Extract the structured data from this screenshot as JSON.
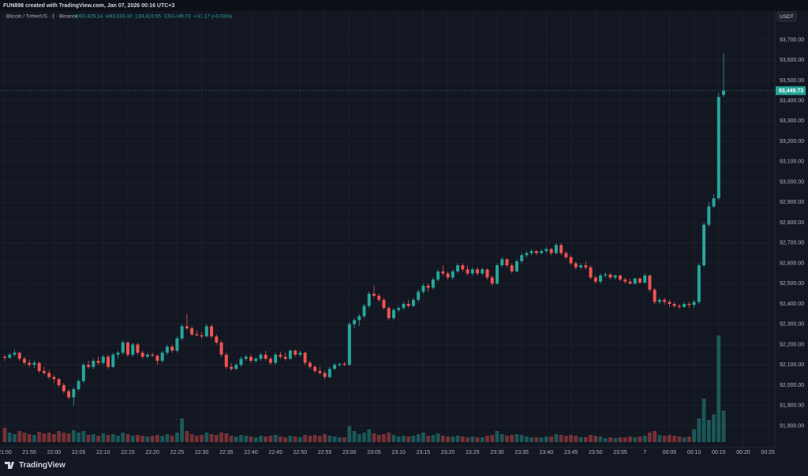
{
  "chart_data": {
    "type": "candlestick",
    "title": "FUN898 created with TradingView.com, Jan 07, 2026 00:16 UTC+3",
    "symbol": "Bitcoin / TetherUS · 1 · Binance",
    "header_values": [
      "O93,429.14",
      "H93,633.40",
      "L93,418.55",
      "C93,449.73",
      "+31.17 (+0.03%)"
    ],
    "currency": "USDT",
    "brand": "TradingView",
    "up_color": "#26a69a",
    "down_color": "#ef5350",
    "last_price": {
      "value": 93449.73,
      "label": "93,449.73"
    },
    "ylim": [
      91720,
      93830
    ],
    "yticks": [
      {
        "value": 91800,
        "label": "91,800.00"
      },
      {
        "value": 91900,
        "label": "91,900.00"
      },
      {
        "value": 92000,
        "label": "92,000.00"
      },
      {
        "value": 92100,
        "label": "92,100.00"
      },
      {
        "value": 92200,
        "label": "92,200.00"
      },
      {
        "value": 92300,
        "label": "92,300.00"
      },
      {
        "value": 92400,
        "label": "92,400.00"
      },
      {
        "value": 92500,
        "label": "92,500.00"
      },
      {
        "value": 92600,
        "label": "92,600.00"
      },
      {
        "value": 92700,
        "label": "92,700.00"
      },
      {
        "value": 92800,
        "label": "92,800.00"
      },
      {
        "value": 92900,
        "label": "92,900.00"
      },
      {
        "value": 93000,
        "label": "93,000.00"
      },
      {
        "value": 93100,
        "label": "93,100.00"
      },
      {
        "value": 93200,
        "label": "93,200.00"
      },
      {
        "value": 93300,
        "label": "93,300.00"
      },
      {
        "value": 93400,
        "label": "93,400.00"
      },
      {
        "value": 93500,
        "label": "93,500.00"
      },
      {
        "value": 93600,
        "label": "93,600.00"
      },
      {
        "value": 93700,
        "label": "93,700.00"
      }
    ],
    "time_labels": [
      "21:50",
      "21:55",
      "22:00",
      "22:05",
      "22:10",
      "22:15",
      "22:20",
      "22:25",
      "22:30",
      "22:35",
      "22:40",
      "22:45",
      "22:50",
      "22:55",
      "23:00",
      "23:05",
      "23:10",
      "23:15",
      "23:20",
      "23:25",
      "23:30",
      "23:35",
      "23:40",
      "23:45",
      "23:50",
      "23:55",
      "7",
      "00:05",
      "00:10",
      "00:15",
      "00:20",
      "00:25"
    ],
    "grid": true,
    "candles": [
      [
        92140,
        92150,
        92120,
        92135,
        18
      ],
      [
        92135,
        92160,
        92130,
        92150,
        12
      ],
      [
        92150,
        92175,
        92140,
        92160,
        10
      ],
      [
        92160,
        92165,
        92120,
        92130,
        14
      ],
      [
        92130,
        92140,
        92100,
        92110,
        12
      ],
      [
        92110,
        92125,
        92090,
        92100,
        10
      ],
      [
        92100,
        92120,
        92085,
        92110,
        9
      ],
      [
        92110,
        92115,
        92060,
        92070,
        13
      ],
      [
        92070,
        92090,
        92050,
        92060,
        11
      ],
      [
        92060,
        92075,
        92030,
        92040,
        12
      ],
      [
        92040,
        92050,
        92010,
        92030,
        10
      ],
      [
        92030,
        92035,
        91990,
        92000,
        14
      ],
      [
        92000,
        92010,
        91960,
        91970,
        12
      ],
      [
        91970,
        91980,
        91930,
        91940,
        11
      ],
      [
        91940,
        91990,
        91900,
        91980,
        15
      ],
      [
        91980,
        92030,
        91970,
        92020,
        12
      ],
      [
        92020,
        92110,
        92010,
        92100,
        14
      ],
      [
        92100,
        92120,
        92080,
        92090,
        9
      ],
      [
        92090,
        92130,
        92080,
        92120,
        10
      ],
      [
        92120,
        92140,
        92100,
        92110,
        8
      ],
      [
        92110,
        92150,
        92100,
        92140,
        11
      ],
      [
        92140,
        92150,
        92080,
        92090,
        9
      ],
      [
        92090,
        92160,
        92085,
        92150,
        10
      ],
      [
        92150,
        92170,
        92130,
        92160,
        8
      ],
      [
        92160,
        92220,
        92150,
        92210,
        12
      ],
      [
        92210,
        92215,
        92140,
        92150,
        10
      ],
      [
        92150,
        92210,
        92140,
        92200,
        8
      ],
      [
        92200,
        92210,
        92150,
        92160,
        9
      ],
      [
        92160,
        92170,
        92130,
        92140,
        8
      ],
      [
        92140,
        92160,
        92130,
        92150,
        7
      ],
      [
        92150,
        92160,
        92140,
        92145,
        8
      ],
      [
        92145,
        92150,
        92100,
        92120,
        9
      ],
      [
        92120,
        92170,
        92110,
        92160,
        8
      ],
      [
        92160,
        92200,
        92150,
        92190,
        10
      ],
      [
        92190,
        92200,
        92160,
        92170,
        8
      ],
      [
        92170,
        92240,
        92160,
        92230,
        12
      ],
      [
        92230,
        92300,
        92220,
        92290,
        30
      ],
      [
        92290,
        92350,
        92270,
        92280,
        14
      ],
      [
        92280,
        92290,
        92240,
        92250,
        10
      ],
      [
        92250,
        92270,
        92240,
        92245,
        8
      ],
      [
        92245,
        92260,
        92230,
        92240,
        9
      ],
      [
        92240,
        92300,
        92235,
        92290,
        12
      ],
      [
        92290,
        92300,
        92230,
        92240,
        10
      ],
      [
        92240,
        92250,
        92200,
        92210,
        9
      ],
      [
        92210,
        92220,
        92140,
        92150,
        12
      ],
      [
        92150,
        92160,
        92080,
        92090,
        11
      ],
      [
        92090,
        92110,
        92070,
        92080,
        8
      ],
      [
        92080,
        92110,
        92075,
        92100,
        7
      ],
      [
        92100,
        92140,
        92090,
        92130,
        9
      ],
      [
        92130,
        92150,
        92120,
        92140,
        8
      ],
      [
        92140,
        92150,
        92110,
        92120,
        7
      ],
      [
        92120,
        92140,
        92110,
        92130,
        6
      ],
      [
        92130,
        92160,
        92120,
        92150,
        8
      ],
      [
        92150,
        92170,
        92120,
        92130,
        7
      ],
      [
        92130,
        92140,
        92100,
        92110,
        8
      ],
      [
        92110,
        92160,
        92100,
        92150,
        9
      ],
      [
        92150,
        92165,
        92130,
        92140,
        7
      ],
      [
        92140,
        92160,
        92120,
        92130,
        6
      ],
      [
        92130,
        92175,
        92125,
        92170,
        8
      ],
      [
        92170,
        92175,
        92140,
        92150,
        7
      ],
      [
        92150,
        92170,
        92140,
        92160,
        6
      ],
      [
        92160,
        92165,
        92100,
        92110,
        9
      ],
      [
        92110,
        92120,
        92080,
        92090,
        8
      ],
      [
        92090,
        92100,
        92060,
        92070,
        9
      ],
      [
        92070,
        92090,
        92050,
        92060,
        8
      ],
      [
        92060,
        92070,
        92030,
        92040,
        10
      ],
      [
        92040,
        92090,
        92035,
        92080,
        8
      ],
      [
        92080,
        92110,
        92075,
        92100,
        7
      ],
      [
        92100,
        92110,
        92090,
        92105,
        6
      ],
      [
        92105,
        92115,
        92095,
        92100,
        6
      ],
      [
        92100,
        92310,
        92095,
        92300,
        20
      ],
      [
        92300,
        92330,
        92280,
        92320,
        14
      ],
      [
        92320,
        92350,
        92290,
        92340,
        10
      ],
      [
        92340,
        92400,
        92330,
        92390,
        12
      ],
      [
        92390,
        92460,
        92380,
        92450,
        16
      ],
      [
        92450,
        92490,
        92430,
        92440,
        11
      ],
      [
        92440,
        92450,
        92410,
        92420,
        9
      ],
      [
        92420,
        92430,
        92370,
        92380,
        10
      ],
      [
        92380,
        92390,
        92320,
        92330,
        12
      ],
      [
        92330,
        92380,
        92320,
        92370,
        9
      ],
      [
        92370,
        92390,
        92360,
        92380,
        7
      ],
      [
        92380,
        92410,
        92370,
        92400,
        8
      ],
      [
        92400,
        92420,
        92380,
        92390,
        7
      ],
      [
        92390,
        92430,
        92385,
        92420,
        8
      ],
      [
        92420,
        92470,
        92410,
        92460,
        10
      ],
      [
        92460,
        92500,
        92450,
        92490,
        12
      ],
      [
        92490,
        92500,
        92460,
        92480,
        8
      ],
      [
        92480,
        92530,
        92470,
        92520,
        9
      ],
      [
        92520,
        92570,
        92510,
        92560,
        11
      ],
      [
        92560,
        92590,
        92540,
        92550,
        8
      ],
      [
        92550,
        92560,
        92520,
        92530,
        7
      ],
      [
        92530,
        92570,
        92520,
        92560,
        7
      ],
      [
        92560,
        92600,
        92550,
        92590,
        8
      ],
      [
        92590,
        92600,
        92560,
        92570,
        7
      ],
      [
        92570,
        92590,
        92540,
        92550,
        6
      ],
      [
        92550,
        92580,
        92540,
        92570,
        7
      ],
      [
        92570,
        92580,
        92540,
        92550,
        6
      ],
      [
        92550,
        92580,
        92540,
        92570,
        6
      ],
      [
        92570,
        92575,
        92520,
        92530,
        8
      ],
      [
        92530,
        92540,
        92490,
        92500,
        9
      ],
      [
        92500,
        92600,
        92495,
        92590,
        14
      ],
      [
        92590,
        92630,
        92580,
        92620,
        10
      ],
      [
        92620,
        92625,
        92580,
        92590,
        8
      ],
      [
        92590,
        92600,
        92550,
        92560,
        9
      ],
      [
        92560,
        92620,
        92555,
        92610,
        10
      ],
      [
        92610,
        92650,
        92600,
        92640,
        9
      ],
      [
        92640,
        92660,
        92630,
        92650,
        7
      ],
      [
        92650,
        92670,
        92640,
        92660,
        6
      ],
      [
        92660,
        92665,
        92640,
        92650,
        6
      ],
      [
        92650,
        92670,
        92645,
        92660,
        6
      ],
      [
        92660,
        92680,
        92650,
        92670,
        7
      ],
      [
        92670,
        92675,
        92640,
        92650,
        7
      ],
      [
        92650,
        92700,
        92645,
        92690,
        10
      ],
      [
        92690,
        92700,
        92640,
        92650,
        9
      ],
      [
        92650,
        92660,
        92620,
        92630,
        8
      ],
      [
        92630,
        92640,
        92590,
        92600,
        9
      ],
      [
        92600,
        92610,
        92570,
        92580,
        8
      ],
      [
        92580,
        92600,
        92570,
        92590,
        6
      ],
      [
        92590,
        92610,
        92570,
        92580,
        6
      ],
      [
        92580,
        92590,
        92520,
        92530,
        9
      ],
      [
        92530,
        92540,
        92500,
        92510,
        8
      ],
      [
        92510,
        92550,
        92500,
        92540,
        7
      ],
      [
        92540,
        92555,
        92530,
        92545,
        5
      ],
      [
        92545,
        92550,
        92520,
        92530,
        6
      ],
      [
        92530,
        92545,
        92520,
        92540,
        5
      ],
      [
        92540,
        92545,
        92510,
        92520,
        6
      ],
      [
        92520,
        92530,
        92500,
        92510,
        6
      ],
      [
        92510,
        92525,
        92495,
        92500,
        7
      ],
      [
        92500,
        92530,
        92495,
        92525,
        6
      ],
      [
        92525,
        92530,
        92500,
        92505,
        7
      ],
      [
        92505,
        92550,
        92500,
        92540,
        8
      ],
      [
        92540,
        92545,
        92460,
        92470,
        12
      ],
      [
        92470,
        92480,
        92400,
        92410,
        14
      ],
      [
        92410,
        92430,
        92400,
        92420,
        9
      ],
      [
        92420,
        92430,
        92395,
        92410,
        8
      ],
      [
        92410,
        92420,
        92385,
        92400,
        9
      ],
      [
        92400,
        92410,
        92380,
        92390,
        8
      ],
      [
        92390,
        92400,
        92375,
        92385,
        7
      ],
      [
        92385,
        92410,
        92380,
        92400,
        6
      ],
      [
        92400,
        92410,
        92380,
        92395,
        7
      ],
      [
        92395,
        92420,
        92380,
        92410,
        16
      ],
      [
        92410,
        92600,
        92400,
        92590,
        30
      ],
      [
        92590,
        92800,
        92580,
        92790,
        55
      ],
      [
        92790,
        92900,
        92780,
        92880,
        28
      ],
      [
        92880,
        92940,
        92870,
        92920,
        35
      ],
      [
        92920,
        93440,
        92910,
        93418.56,
        135
      ],
      [
        93429.14,
        93633.4,
        93418.55,
        93449.73,
        40
      ]
    ]
  }
}
